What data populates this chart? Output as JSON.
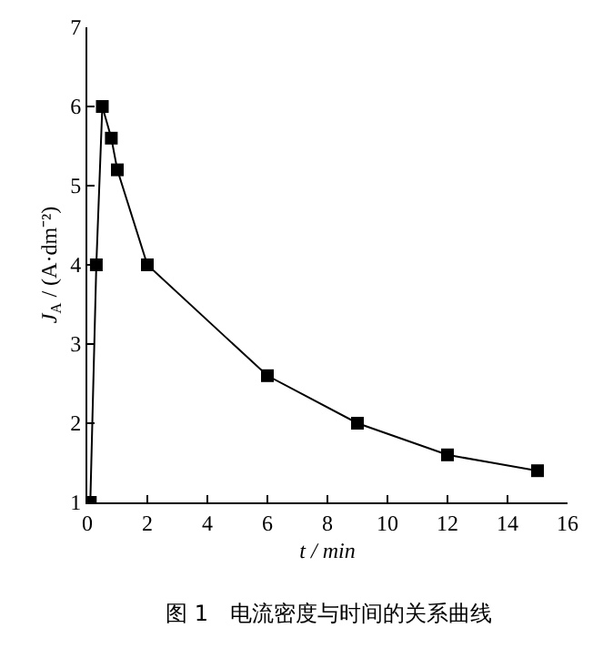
{
  "chart_data": {
    "type": "line",
    "xlabel": "t / min",
    "ylabel": "J$_{A}$ / (A·dm⁻²)",
    "annotations": [
      "图 1　电流密度与时间的关系曲线"
    ],
    "x": [
      0.1,
      0.3,
      0.5,
      0.8,
      1.0,
      2,
      6,
      9,
      12,
      15
    ],
    "series": [
      {
        "color": "#000000",
        "values": [
          1.0,
          4.0,
          6.0,
          5.6,
          5.2,
          4.0,
          2.6,
          2.0,
          1.6,
          1.4
        ]
      }
    ],
    "xlim": [
      0,
      16
    ],
    "xticks": [
      0,
      2,
      4,
      6,
      8,
      10,
      12,
      14,
      16
    ],
    "ylim": [
      1,
      7
    ],
    "yticks": [
      1,
      2,
      3,
      4,
      5,
      6,
      7
    ],
    "marker": "square",
    "line_style": "solid"
  }
}
